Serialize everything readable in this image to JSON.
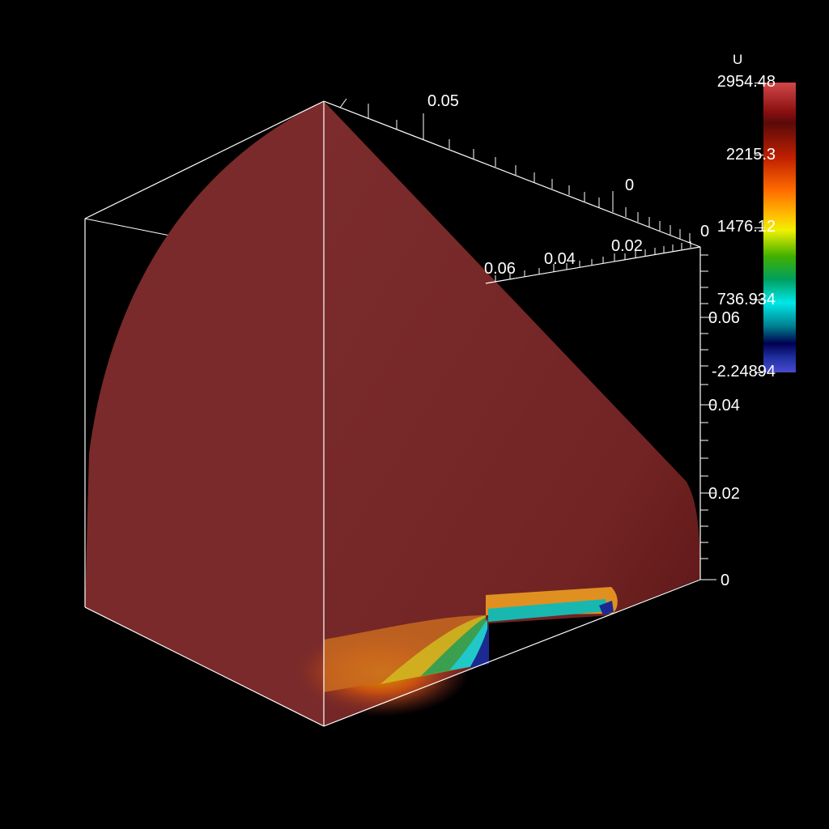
{
  "colorbar": {
    "title": "U",
    "labels": [
      "2954.48",
      "2215.3",
      "1476.12",
      "736.934",
      "-2.24894"
    ]
  },
  "axes": {
    "top_axis": [
      "0.05",
      "0"
    ],
    "depth_axis": [
      "0.06",
      "0.04",
      "0.02",
      "0"
    ],
    "vertical_axis": [
      "0.06",
      "0.04",
      "0.02",
      "0"
    ]
  },
  "colors": {
    "background": "#000000",
    "field_max": "#7a2a2a",
    "bounding_box": "#ffffff"
  }
}
